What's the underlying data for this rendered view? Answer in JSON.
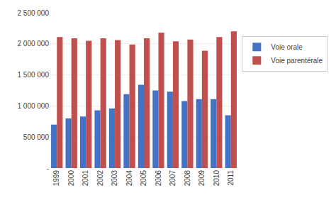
{
  "chart_data": {
    "type": "bar",
    "categories": [
      "1999",
      "2000",
      "2001",
      "2002",
      "2003",
      "2004",
      "2005",
      "2006",
      "2007",
      "2008",
      "2009",
      "2010",
      "2011"
    ],
    "series": [
      {
        "name": "Voie orale",
        "color": "#4472C4",
        "values": [
          700000,
          800000,
          830000,
          930000,
          960000,
          1190000,
          1340000,
          1250000,
          1230000,
          1080000,
          1110000,
          1110000,
          850000
        ]
      },
      {
        "name": "Voie parentérale",
        "color": "#C0504D",
        "values": [
          2110000,
          2090000,
          2050000,
          2090000,
          2060000,
          1990000,
          2090000,
          2180000,
          2040000,
          2070000,
          1890000,
          2110000,
          2200000
        ]
      }
    ],
    "ylim": [
      0,
      2500000
    ],
    "yticks": [
      {
        "value": 0,
        "label": "-"
      },
      {
        "value": 500000,
        "label": "500 000"
      },
      {
        "value": 1000000,
        "label": "1 000 000"
      },
      {
        "value": 1500000,
        "label": "1 500 000"
      },
      {
        "value": 2000000,
        "label": "2 000 000"
      },
      {
        "value": 2500000,
        "label": "2 500 000"
      }
    ],
    "grid": true,
    "legend": "right"
  }
}
